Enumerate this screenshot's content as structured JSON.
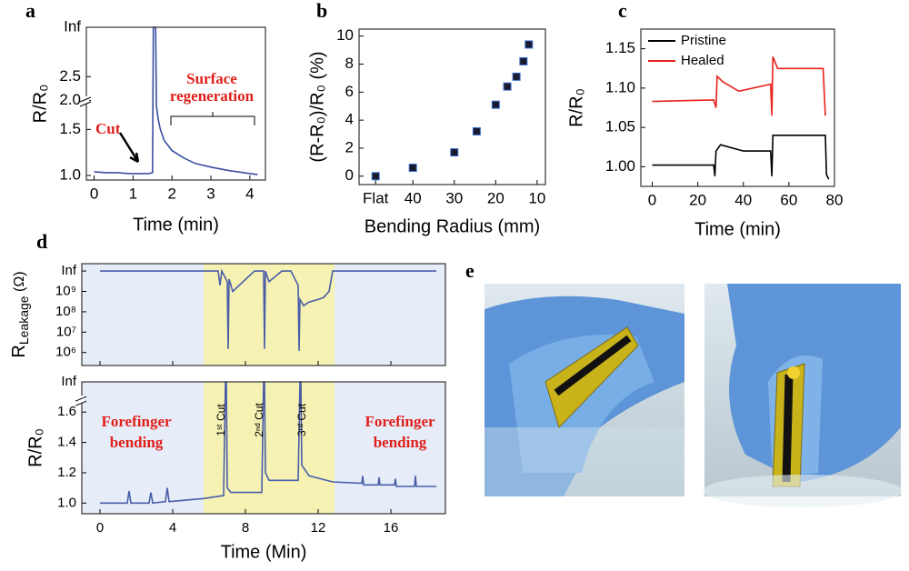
{
  "chart_data": [
    {
      "type": "line",
      "panel_label": "a",
      "xlabel": "Time (min)",
      "ylabel": "R/R₀",
      "xlim": [
        -0.2,
        4.4
      ],
      "xticks": [
        0,
        1,
        2,
        3,
        4
      ],
      "ylim": [
        0.95,
        3.0
      ],
      "ybreak": [
        1.78,
        2.3
      ],
      "yticks": [
        {
          "value": 1,
          "label": "1.0"
        },
        1.5,
        {
          "value": 2,
          "label": "2.0"
        },
        2.5,
        {
          "value": 3.0,
          "label": "Inf"
        }
      ],
      "series": [
        {
          "color": "#3b4fa0",
          "x": [
            0,
            0.3,
            0.6,
            0.9,
            1.2,
            1.4,
            1.5,
            1.52,
            1.58,
            1.6,
            1.65,
            1.7,
            1.8,
            2.0,
            2.3,
            2.6,
            3.0,
            3.5,
            4.0,
            4.2
          ],
          "values": [
            1.04,
            1.03,
            1.03,
            1.02,
            1.02,
            1.02,
            1.03,
            3.0,
            3.0,
            1.75,
            1.6,
            1.5,
            1.38,
            1.27,
            1.19,
            1.13,
            1.09,
            1.05,
            1.02,
            1.01
          ]
        }
      ],
      "annotations": [
        {
          "text": "Cut",
          "color": "#e0201b"
        },
        {
          "text": "Surface",
          "color": "#e0201b"
        },
        {
          "text": "regeneration",
          "color": "#e0201b"
        }
      ]
    },
    {
      "type": "scatter",
      "panel_label": "b",
      "xlabel": "Bending Radius (mm)",
      "ylabel": "(R-R₀)/R₀ (%)",
      "xlim": [
        53,
        8
      ],
      "xticks": [
        {
          "value": 49,
          "label": "Flat"
        },
        40,
        30,
        20,
        10
      ],
      "ylim": [
        -0.6,
        10.5
      ],
      "yticks": [
        0,
        2,
        4,
        6,
        8,
        10
      ],
      "series": [
        {
          "color": "#1a1a2e",
          "x": [
            49,
            40,
            30,
            24.6,
            20,
            17.2,
            15,
            13.3,
            12
          ],
          "values": [
            0,
            0.6,
            1.7,
            3.2,
            5.1,
            6.4,
            7.1,
            8.2,
            9.4
          ]
        }
      ]
    },
    {
      "type": "line",
      "panel_label": "c",
      "xlabel": "Time (min)",
      "ylabel": "R/R₀",
      "legend": "upper left",
      "xlim": [
        -5,
        80
      ],
      "xticks": [
        0,
        20,
        40,
        60,
        80
      ],
      "ylim": [
        0.975,
        1.175
      ],
      "yticks": [
        {
          "value": 1,
          "label": "1.00"
        },
        1.05,
        {
          "value": 1.1,
          "label": "1.10"
        },
        1.15
      ],
      "series": [
        {
          "name": "Pristine",
          "color": "#000000",
          "x": [
            0,
            27,
            27.5,
            28,
            30,
            40,
            52,
            52.5,
            53,
            60,
            76,
            76.5,
            77.5
          ],
          "values": [
            1.002,
            1.002,
            0.988,
            1.02,
            1.028,
            1.02,
            1.02,
            0.988,
            1.04,
            1.04,
            1.04,
            0.99,
            0.984
          ]
        },
        {
          "name": "Healed",
          "color": "#e8201b",
          "x": [
            0,
            27,
            28,
            28.5,
            31,
            38,
            52,
            52.5,
            53,
            55,
            65,
            75,
            76
          ],
          "values": [
            1.083,
            1.085,
            1.075,
            1.115,
            1.108,
            1.096,
            1.105,
            1.065,
            1.14,
            1.125,
            1.125,
            1.125,
            1.065
          ]
        }
      ]
    },
    {
      "type": "line",
      "panel_label": "d",
      "ylabel": [
        "R",
        "Leakage",
        " (Ω)"
      ],
      "log_y": true,
      "show_xtick_labels": false,
      "background": "#e6edf8",
      "highlight_xlim": [
        5.7,
        12.9
      ],
      "highlight_color": "#f6f2b4",
      "xlim": [
        -1,
        19
      ],
      "xticks": [
        0,
        4,
        8,
        12,
        16
      ],
      "ylim": [
        230000,
        23000000000
      ],
      "yticks": [
        {
          "value": 1000000,
          "label": "10⁶"
        },
        {
          "value": 10000000,
          "label": "10⁷"
        },
        {
          "value": 100000000,
          "label": "10⁸"
        },
        {
          "value": 1000000000,
          "label": "10⁹"
        },
        {
          "value": 10000000000,
          "label": "Inf"
        }
      ],
      "series": [
        {
          "color": "#4a5ea8",
          "x": [
            0,
            6.5,
            6.6,
            6.7,
            7.0,
            7.05,
            7.1,
            7.3,
            8.5,
            9.0,
            9.05,
            9.1,
            9.3,
            10.0,
            10.5,
            10.9,
            10.95,
            11.0,
            11.2,
            11.5,
            12.0,
            12.3,
            12.6,
            12.8,
            18.5
          ],
          "values": [
            10000000000,
            10000000000,
            2000000000,
            10000000000,
            3000000000,
            1500000,
            4000000000,
            1000000000,
            10000000000,
            10000000000,
            1500000,
            10000000000,
            3000000000,
            10000000000,
            10000000000,
            2000000000,
            1200000,
            400000000,
            200000000,
            300000000,
            400000000,
            500000000,
            1000000000,
            10000000000,
            10000000000
          ]
        }
      ]
    },
    {
      "type": "line",
      "xlabel": "Time (Min)",
      "ylabel": "R/R₀",
      "background": "#e6edf8",
      "highlight_xlim": [
        5.7,
        12.9
      ],
      "highlight_color": "#f6f2b4",
      "xlim": [
        -1,
        19
      ],
      "xticks": [
        0,
        4,
        8,
        12,
        16
      ],
      "ylim": [
        0.93,
        2.0
      ],
      "ybreak": [
        1.66,
        1.9
      ],
      "yticks": [
        {
          "value": 1,
          "label": "1.0"
        },
        1.2,
        1.4,
        1.6,
        {
          "value": 2.0,
          "label": "Inf"
        }
      ],
      "series": [
        {
          "color": "#4a5ea8",
          "x": [
            0,
            1.5,
            1.6,
            1.7,
            2.7,
            2.8,
            2.9,
            3.6,
            3.7,
            3.8,
            5.7,
            6.8,
            6.9,
            6.95,
            7.0,
            7.2,
            8.9,
            9.0,
            9.05,
            9.1,
            9.3,
            10.9,
            11.0,
            11.05,
            11.1,
            11.5,
            12.8,
            14.4,
            14.45,
            14.5,
            15.3,
            15.35,
            15.4,
            16.2,
            16.25,
            16.3,
            17.3,
            17.35,
            17.4,
            18.5
          ],
          "values": [
            1.0,
            1.0,
            1.08,
            1.0,
            1.0,
            1.07,
            1.0,
            1.01,
            1.1,
            1.01,
            1.03,
            1.05,
            2.0,
            2.0,
            1.1,
            1.07,
            1.07,
            2.0,
            2.0,
            1.2,
            1.15,
            1.15,
            2.0,
            2.0,
            1.25,
            1.18,
            1.14,
            1.13,
            1.18,
            1.12,
            1.12,
            1.17,
            1.12,
            1.12,
            1.16,
            1.11,
            1.11,
            1.18,
            1.11,
            1.11
          ]
        }
      ],
      "annotations": [
        {
          "text": "Forefinger",
          "color": "#e0201b"
        },
        {
          "text": "bending",
          "color": "#e0201b"
        },
        {
          "text": "Forefinger",
          "color": "#e0201b"
        },
        {
          "text": "bending",
          "color": "#e0201b"
        },
        {
          "text": "1ˢᵗ Cut",
          "color": "#000000"
        },
        {
          "text": "2ⁿᵈ Cut",
          "color": "#000000"
        },
        {
          "text": "3ʳᵈ Cut",
          "color": "#000000"
        }
      ]
    }
  ],
  "panel_e": {
    "label": "e"
  }
}
